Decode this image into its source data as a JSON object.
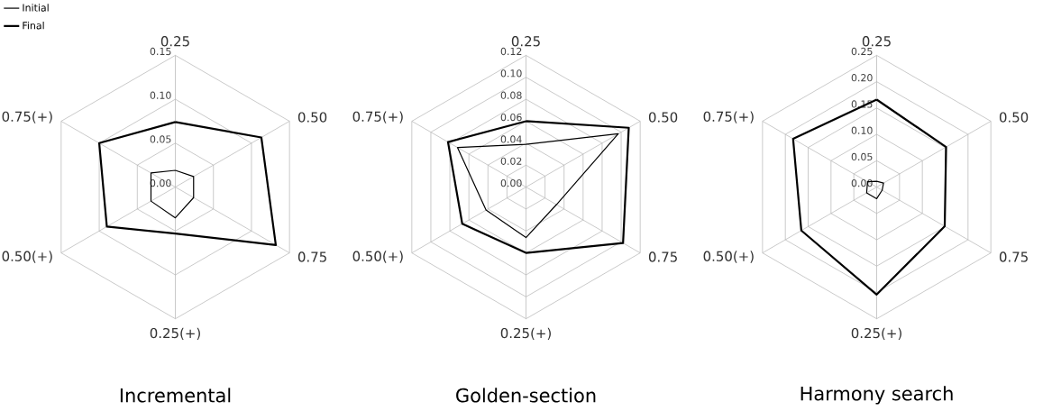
{
  "chart_data": [
    {
      "type": "radar",
      "title": "Incremental",
      "categories": [
        "0.25",
        "0.50",
        "0.75",
        "0.25(+)",
        "0.50(+)",
        "0.75(+)"
      ],
      "series": [
        {
          "name": "Initial",
          "color": "#000000",
          "values": [
            0.019,
            0.024,
            0.024,
            0.035,
            0.032,
            0.032
          ]
        },
        {
          "name": "Final",
          "color": "#000000",
          "values": [
            0.074,
            0.113,
            0.132,
            0.053,
            0.09,
            0.1
          ]
        }
      ],
      "ylim": [
        0,
        0.15
      ],
      "yticks": [
        {
          "value": 0,
          "label": "0.00"
        },
        {
          "value": 0.05,
          "label": "0.05"
        },
        {
          "value": 0.1,
          "label": "0.10"
        },
        {
          "value": 0.15,
          "label": "0.15"
        }
      ],
      "grid": true,
      "legend": "top left"
    },
    {
      "type": "radar",
      "title": "Golden-section",
      "categories": [
        "0.25",
        "0.50",
        "0.75",
        "0.25(+)",
        "0.50(+)",
        "0.75(+)"
      ],
      "series": [
        {
          "color": "#000000",
          "values": [
            0.039,
            0.097,
            0.032,
            0.046,
            0.042,
            0.072
          ]
        },
        {
          "color": "#000000",
          "values": [
            0.06,
            0.108,
            0.102,
            0.06,
            0.067,
            0.082
          ]
        }
      ],
      "ylim": [
        0,
        0.12
      ],
      "yticks": [
        {
          "value": 0,
          "label": "0.00"
        },
        {
          "value": 0.02,
          "label": "0.02"
        },
        {
          "value": 0.04,
          "label": "0.04"
        },
        {
          "value": 0.06,
          "label": "0.06"
        },
        {
          "value": 0.08,
          "label": "0.08"
        },
        {
          "value": 0.1,
          "label": "0.10"
        },
        {
          "value": 0.12,
          "label": "0.12"
        }
      ],
      "grid": true
    },
    {
      "type": "radar",
      "title": "Harmony search",
      "categories": [
        "0.25",
        "0.50",
        "0.75",
        "0.25(+)",
        "0.50(+)",
        "0.75(+)"
      ],
      "series": [
        {
          "color": "#000000",
          "values": [
            0.011,
            0.015,
            0.012,
            0.022,
            0.022,
            0.02
          ]
        },
        {
          "color": "#000000",
          "values": [
            0.166,
            0.152,
            0.149,
            0.204,
            0.165,
            0.183
          ]
        }
      ],
      "ylim": [
        0,
        0.25
      ],
      "yticks": [
        {
          "value": 0,
          "label": "0.00"
        },
        {
          "value": 0.05,
          "label": "0.05"
        },
        {
          "value": 0.1,
          "label": "0.10"
        },
        {
          "value": 0.15,
          "label": "0.15"
        },
        {
          "value": 0.2,
          "label": "0.20"
        },
        {
          "value": 0.25,
          "label": "0.25"
        }
      ],
      "grid": true
    }
  ]
}
